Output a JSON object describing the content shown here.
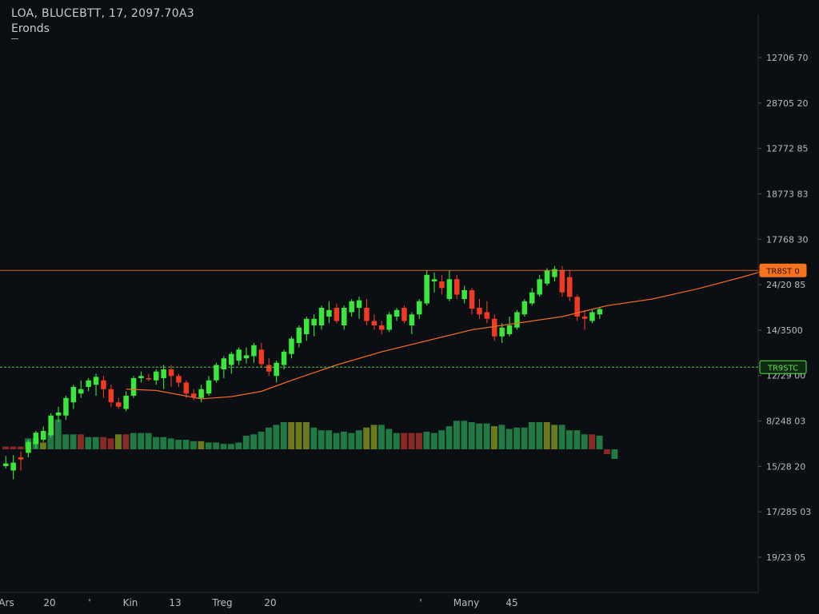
{
  "header": {
    "title": "LOA, BLUCEBTT, 17, 2097.70A3",
    "subtitle": "Eronds"
  },
  "colors": {
    "background": "#0b0e12",
    "bull": "#39e83a",
    "bear": "#f03a22",
    "volume_bull": "#1f7a44",
    "volume_bear": "#8a2a24",
    "volume_neutral": "#6b7a1c",
    "moving_average": "#f26a22",
    "resistance_line": "#f5731e",
    "support_line": "#58e34a",
    "axis_text": "#b8bcc2"
  },
  "chart_data": {
    "type": "candlestick",
    "y_axis_labels": [
      "12706 70",
      "28705 20",
      "12772 85",
      "18773 83",
      "17768 30",
      "24/20 85",
      "14/3500",
      "12/29 00",
      "8/248 03",
      "15/28 20",
      "17/285 03",
      "19/23 05"
    ],
    "x_axis_labels": [
      "Ars",
      "20",
      "'",
      "Kin",
      "13",
      "Treg",
      "20",
      "'",
      "Many",
      "45"
    ],
    "price_tags": [
      {
        "label": "TR8ST 0",
        "color": "#f5731e",
        "price": 58.5
      },
      {
        "label": "TR9STC",
        "color": "#58e34a",
        "price": 36.5
      }
    ],
    "grid": false,
    "ylim": [
      0,
      100
    ],
    "candles": [
      {
        "o": 14,
        "h": 16.3,
        "l": 13.5,
        "c": 14.6
      },
      {
        "o": 13,
        "h": 16.5,
        "l": 11,
        "c": 14.8
      },
      {
        "o": 16,
        "h": 17.3,
        "l": 13,
        "c": 15.5
      },
      {
        "o": 17,
        "h": 20,
        "l": 16,
        "c": 19.5
      },
      {
        "o": 19,
        "h": 22,
        "l": 18,
        "c": 21.6
      },
      {
        "o": 20,
        "h": 23,
        "l": 19.5,
        "c": 22
      },
      {
        "o": 21,
        "h": 26,
        "l": 20.5,
        "c": 25.5
      },
      {
        "o": 25.5,
        "h": 27.5,
        "l": 24,
        "c": 26.2
      },
      {
        "o": 25.5,
        "h": 30,
        "l": 24.5,
        "c": 29.5
      },
      {
        "o": 28.5,
        "h": 32.5,
        "l": 27,
        "c": 32
      },
      {
        "o": 30.5,
        "h": 33.5,
        "l": 29.5,
        "c": 31.5
      },
      {
        "o": 32,
        "h": 34,
        "l": 31,
        "c": 33.5
      },
      {
        "o": 32.5,
        "h": 35,
        "l": 30,
        "c": 34.3
      },
      {
        "o": 33.5,
        "h": 34.5,
        "l": 29.5,
        "c": 31.5
      },
      {
        "o": 31.5,
        "h": 32.5,
        "l": 27.5,
        "c": 28.5
      },
      {
        "o": 28.5,
        "h": 29.5,
        "l": 27,
        "c": 27.5
      },
      {
        "o": 27,
        "h": 31,
        "l": 26.5,
        "c": 30
      },
      {
        "o": 30,
        "h": 34.5,
        "l": 29.5,
        "c": 34
      },
      {
        "o": 34,
        "h": 35.5,
        "l": 33,
        "c": 34.5
      },
      {
        "o": 34,
        "h": 35,
        "l": 33.3,
        "c": 33.7
      },
      {
        "o": 33.5,
        "h": 36,
        "l": 32.5,
        "c": 35.5
      },
      {
        "o": 34,
        "h": 37,
        "l": 31.5,
        "c": 36
      },
      {
        "o": 36,
        "h": 37,
        "l": 32,
        "c": 34.5
      },
      {
        "o": 34.5,
        "h": 35,
        "l": 32,
        "c": 33
      },
      {
        "o": 33,
        "h": 33.5,
        "l": 29.5,
        "c": 30.5
      },
      {
        "o": 30.5,
        "h": 31.5,
        "l": 29,
        "c": 29.7
      },
      {
        "o": 29.5,
        "h": 32.5,
        "l": 28.5,
        "c": 31.5
      },
      {
        "o": 30.5,
        "h": 34.5,
        "l": 30,
        "c": 33.5
      },
      {
        "o": 33.5,
        "h": 37.5,
        "l": 33,
        "c": 37
      },
      {
        "o": 36,
        "h": 39,
        "l": 34,
        "c": 38.5
      },
      {
        "o": 37,
        "h": 40,
        "l": 35,
        "c": 39.5
      },
      {
        "o": 38,
        "h": 41,
        "l": 37,
        "c": 40.5
      },
      {
        "o": 38.5,
        "h": 41,
        "l": 37.3,
        "c": 39.2
      },
      {
        "o": 39,
        "h": 42,
        "l": 37.5,
        "c": 41.5
      },
      {
        "o": 40.5,
        "h": 42,
        "l": 36.5,
        "c": 37.2
      },
      {
        "o": 37,
        "h": 38.5,
        "l": 34.5,
        "c": 35.5
      },
      {
        "o": 34.5,
        "h": 38,
        "l": 33,
        "c": 37.5
      },
      {
        "o": 37,
        "h": 40.5,
        "l": 36,
        "c": 40
      },
      {
        "o": 39.5,
        "h": 43.5,
        "l": 38.5,
        "c": 43
      },
      {
        "o": 42,
        "h": 46,
        "l": 41,
        "c": 45.5
      },
      {
        "o": 44,
        "h": 48,
        "l": 42.5,
        "c": 47.5
      },
      {
        "o": 46,
        "h": 48.5,
        "l": 43.5,
        "c": 47.5
      },
      {
        "o": 46,
        "h": 50.5,
        "l": 45,
        "c": 50
      },
      {
        "o": 48,
        "h": 51.5,
        "l": 46.5,
        "c": 49.5
      },
      {
        "o": 50,
        "h": 51,
        "l": 46.5,
        "c": 47
      },
      {
        "o": 46,
        "h": 50.5,
        "l": 45,
        "c": 50
      },
      {
        "o": 49,
        "h": 52,
        "l": 48,
        "c": 51.5
      },
      {
        "o": 50,
        "h": 52.5,
        "l": 47.5,
        "c": 51.7
      },
      {
        "o": 50,
        "h": 52,
        "l": 46,
        "c": 47
      },
      {
        "o": 47,
        "h": 48.5,
        "l": 45,
        "c": 46
      },
      {
        "o": 46,
        "h": 47,
        "l": 44,
        "c": 45
      },
      {
        "o": 45,
        "h": 49,
        "l": 44.5,
        "c": 48.5
      },
      {
        "o": 48,
        "h": 50,
        "l": 47,
        "c": 49.5
      },
      {
        "o": 50,
        "h": 50.5,
        "l": 46.5,
        "c": 47
      },
      {
        "o": 46,
        "h": 49,
        "l": 44,
        "c": 48.5
      },
      {
        "o": 48.5,
        "h": 52,
        "l": 47.5,
        "c": 51.5
      },
      {
        "o": 51,
        "h": 58.5,
        "l": 50.5,
        "c": 57.5
      },
      {
        "o": 56,
        "h": 58,
        "l": 53.5,
        "c": 56.5
      },
      {
        "o": 56,
        "h": 57.5,
        "l": 53,
        "c": 54.5
      },
      {
        "o": 52,
        "h": 58.5,
        "l": 51.5,
        "c": 56.5
      },
      {
        "o": 56.5,
        "h": 57.5,
        "l": 52,
        "c": 53
      },
      {
        "o": 52,
        "h": 55,
        "l": 51,
        "c": 54
      },
      {
        "o": 54,
        "h": 54.5,
        "l": 48.5,
        "c": 49.8
      },
      {
        "o": 50,
        "h": 52,
        "l": 47.5,
        "c": 48.5
      },
      {
        "o": 49,
        "h": 51.5,
        "l": 46.5,
        "c": 47.5
      },
      {
        "o": 47.5,
        "h": 48.5,
        "l": 42.5,
        "c": 43.5
      },
      {
        "o": 43.5,
        "h": 46.5,
        "l": 42,
        "c": 45.5
      },
      {
        "o": 44,
        "h": 48,
        "l": 43.5,
        "c": 46
      },
      {
        "o": 45.5,
        "h": 49.5,
        "l": 45,
        "c": 49
      },
      {
        "o": 48.5,
        "h": 52,
        "l": 48,
        "c": 51.5
      },
      {
        "o": 51,
        "h": 54.5,
        "l": 50.5,
        "c": 53.5
      },
      {
        "o": 53,
        "h": 57.5,
        "l": 52.5,
        "c": 56.5
      },
      {
        "o": 55.5,
        "h": 59,
        "l": 55,
        "c": 58.5
      },
      {
        "o": 57,
        "h": 59.5,
        "l": 56,
        "c": 58.8
      },
      {
        "o": 58.5,
        "h": 59.5,
        "l": 52.5,
        "c": 53.5
      },
      {
        "o": 57,
        "h": 58.5,
        "l": 51.5,
        "c": 52.5
      },
      {
        "o": 52.5,
        "h": 53,
        "l": 47,
        "c": 48
      },
      {
        "o": 48,
        "h": 49.5,
        "l": 45,
        "c": 47.5
      },
      {
        "o": 47,
        "h": 49.5,
        "l": 46.5,
        "c": 49
      },
      {
        "o": 48.5,
        "h": 50,
        "l": 47.5,
        "c": 49.7
      }
    ],
    "moving_average": [
      {
        "i": 16,
        "v": 31.5
      },
      {
        "i": 20,
        "v": 31.2
      },
      {
        "i": 26,
        "v": 29.3
      },
      {
        "i": 30,
        "v": 29.8
      },
      {
        "i": 34,
        "v": 31
      },
      {
        "i": 38,
        "v": 33.5
      },
      {
        "i": 44,
        "v": 37
      },
      {
        "i": 50,
        "v": 40
      },
      {
        "i": 56,
        "v": 42.5
      },
      {
        "i": 62,
        "v": 45
      },
      {
        "i": 68,
        "v": 46.5
      },
      {
        "i": 74,
        "v": 48
      },
      {
        "i": 80,
        "v": 50.5
      },
      {
        "i": 86,
        "v": 52
      },
      {
        "i": 92,
        "v": 54.3
      },
      {
        "i": 98,
        "v": 57
      },
      {
        "i": 104,
        "v": 60
      }
    ],
    "volume": [
      0.2,
      0.2,
      0.2,
      0.8,
      0.8,
      0.5,
      1.2,
      2.2,
      1.1,
      1.1,
      1.1,
      0.9,
      0.9,
      0.9,
      0.8,
      1.1,
      1.1,
      1.2,
      1.2,
      1.2,
      0.9,
      0.9,
      0.8,
      0.7,
      0.7,
      0.6,
      0.6,
      0.5,
      0.5,
      0.4,
      0.4,
      0.5,
      1.0,
      1.1,
      1.3,
      1.6,
      1.8,
      2.0,
      2.0,
      2.0,
      2.0,
      1.6,
      1.4,
      1.4,
      1.2,
      1.3,
      1.2,
      1.4,
      1.6,
      1.8,
      1.8,
      1.5,
      1.2,
      1.2,
      1.2,
      1.2,
      1.3,
      1.2,
      1.4,
      1.7,
      2.1,
      2.1,
      2.0,
      1.9,
      1.9,
      1.7,
      1.8,
      1.5,
      1.6,
      1.6,
      2.0,
      2.0,
      2.0,
      1.8,
      1.8,
      1.4,
      1.4,
      1.1,
      1.1,
      1.0
    ],
    "volume_colors": [
      "bear",
      "bear",
      "bear",
      "bull",
      "bull",
      "neutral",
      "bull",
      "bull",
      "bull",
      "bull",
      "bear",
      "bull",
      "bull",
      "bear",
      "bear",
      "neutral",
      "bear",
      "bull",
      "bull",
      "bull",
      "bull",
      "bull",
      "bull",
      "bull",
      "bull",
      "bull",
      "neutral",
      "bull",
      "bull",
      "bull",
      "bull",
      "bull",
      "bull",
      "bull",
      "bull",
      "bull",
      "bull",
      "bull",
      "neutral",
      "neutral",
      "neutral",
      "bull",
      "bull",
      "bull",
      "bull",
      "bull",
      "bull",
      "bull",
      "neutral",
      "neutral",
      "bull",
      "bull",
      "bull",
      "bear",
      "bear",
      "bear",
      "bull",
      "bull",
      "bull",
      "bull",
      "bull",
      "bull",
      "bull",
      "bull",
      "bull",
      "neutral",
      "bull",
      "bull",
      "bull",
      "bull",
      "bull",
      "bull",
      "neutral",
      "neutral",
      "bull",
      "bull",
      "bull",
      "bull",
      "bear",
      "bull"
    ]
  }
}
